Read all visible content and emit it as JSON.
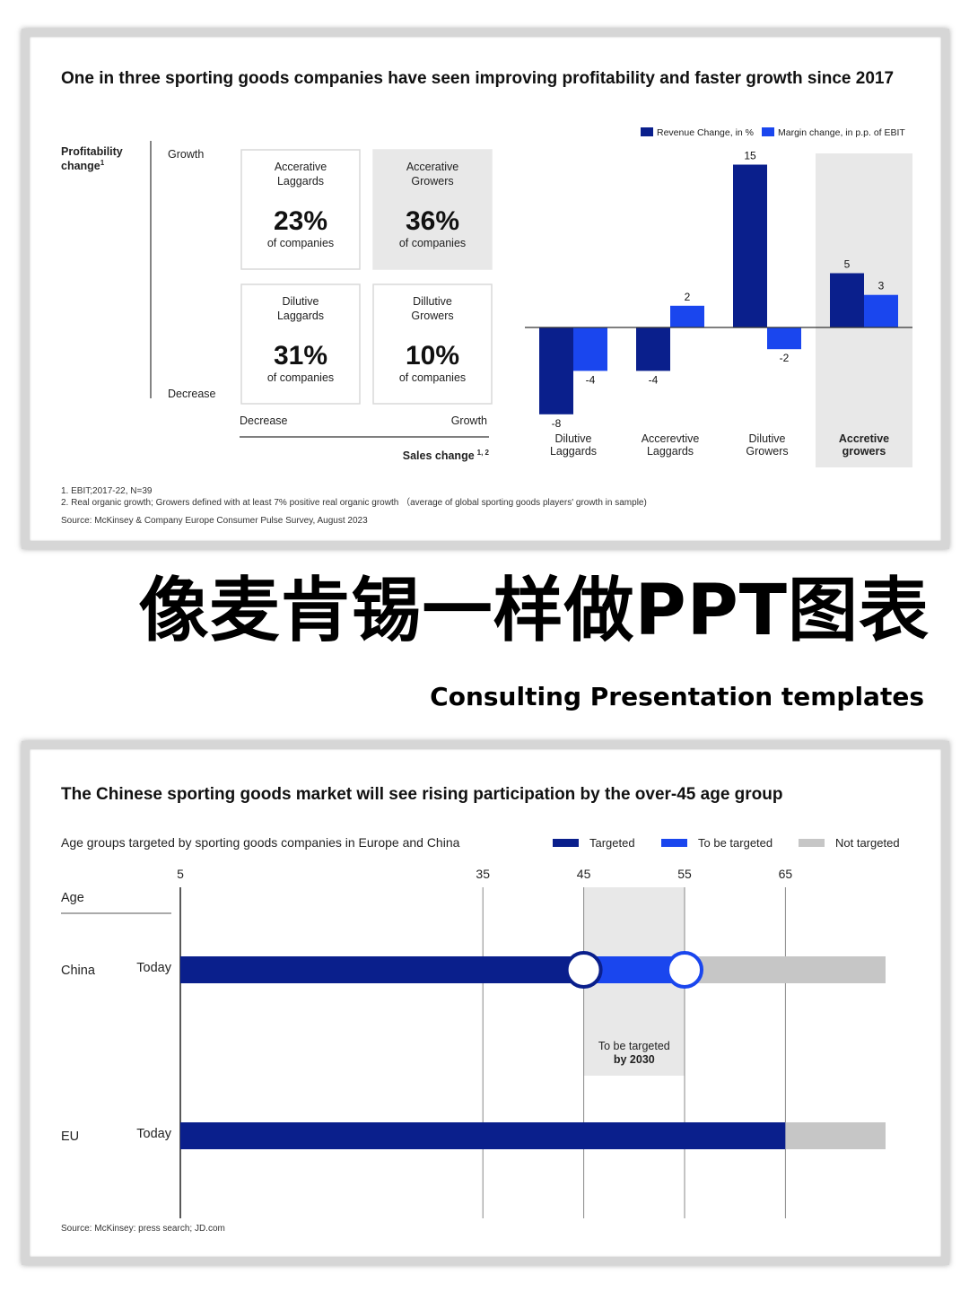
{
  "hero": {
    "title_cn": "像麦肯锡一样做PPT图表",
    "subtitle_en": "Consulting Presentation templates"
  },
  "colors": {
    "dark_blue": "#0a1f8c",
    "bright_blue": "#1a46ee",
    "grey": "#c6c6c6",
    "panel_grey": "#e8e8e8"
  },
  "chart1": {
    "title": "One in three sporting goods companies have seen improving profitability and faster growth since 2017",
    "matrix": {
      "y_label": "Profitability",
      "y_label2": "change",
      "y_sup": "1",
      "y_top": "Growth",
      "y_bottom": "Decrease",
      "x_left": "Decrease",
      "x_right": "Growth",
      "x_label": "Sales change",
      "x_sup": "1, 2",
      "cells": [
        {
          "line1": "Accerative",
          "line2": "Laggards",
          "value": "23%",
          "sub": "of companies",
          "highlight": false
        },
        {
          "line1": "Accerative",
          "line2": "Growers",
          "value": "36%",
          "sub": "of companies",
          "highlight": true
        },
        {
          "line1": "Dilutive",
          "line2": "Laggards",
          "value": "31%",
          "sub": "of companies",
          "highlight": false
        },
        {
          "line1": "Dillutive",
          "line2": "Growers",
          "value": "10%",
          "sub": "of companies",
          "highlight": false
        }
      ]
    },
    "footnotes": {
      "n1": "1. EBIT;2017-22, N=39",
      "n2": "2. Real organic growth; Growers defined with at least 7% positive real organic growth （average of global sporting goods players' growth in sample)",
      "source": "Source: McKinsey & Company Europe Consumer Pulse Survey, August 2023"
    }
  },
  "chart_data": [
    {
      "type": "bar",
      "title": "",
      "categories": [
        "Dilutive Laggards",
        "Accerevtive Laggards",
        "Dilutive Growers",
        "Accretive growers"
      ],
      "category_lines": [
        [
          "Dilutive",
          "Laggards"
        ],
        [
          "Accerevtive",
          "Laggards"
        ],
        [
          "Dilutive",
          "Growers"
        ],
        [
          "Accretive",
          "growers"
        ]
      ],
      "highlight_category": 3,
      "series": [
        {
          "name": "Revenue Change, in %",
          "values": [
            -8,
            -4,
            15,
            5
          ],
          "labels": [
            "-8",
            "-4",
            "15",
            "5"
          ],
          "color": "#0a1f8c"
        },
        {
          "name": "Margin change, in p.p. of EBIT",
          "values": [
            -4,
            2,
            -2,
            3
          ],
          "labels": [
            "-4",
            "2",
            "-2",
            "3"
          ],
          "color": "#1a46ee"
        }
      ],
      "ylim": [
        -8,
        15
      ],
      "legend": "top-right",
      "grid": false
    },
    {
      "type": "bar",
      "title": "The Chinese sporting goods market will see rising participation by the over-45 age group",
      "subtitle": "Age groups targeted by sporting goods companies in Europe and China",
      "axis_label": "Age",
      "ticks": [
        5,
        35,
        45,
        55,
        65
      ],
      "tick_labels": [
        "5",
        "35",
        "45",
        "55",
        "65"
      ],
      "xlim": [
        5,
        70
      ],
      "legend": [
        "Targeted",
        "To be targeted",
        "Not targeted"
      ],
      "legend_colors": [
        "#0a1f8c",
        "#1a46ee",
        "#c6c6c6"
      ],
      "legend_placement": "top-right",
      "highlight_range": [
        45,
        55
      ],
      "highlight_text": [
        "To be targeted",
        "by 2030"
      ],
      "rows": [
        {
          "region": "China",
          "time": "Today",
          "segments": [
            {
              "from": 5,
              "to": 45,
              "status": "Targeted"
            },
            {
              "from": 45,
              "to": 55,
              "status": "To be targeted"
            },
            {
              "from": 55,
              "to": 70,
              "status": "Not targeted"
            }
          ],
          "markers": [
            45,
            55
          ]
        },
        {
          "region": "EU",
          "time": "Today",
          "segments": [
            {
              "from": 5,
              "to": 65,
              "status": "Targeted"
            },
            {
              "from": 65,
              "to": 70,
              "status": "Not targeted"
            }
          ],
          "markers": []
        }
      ],
      "source": "Source: McKinsey: press search; JD.com"
    }
  ]
}
